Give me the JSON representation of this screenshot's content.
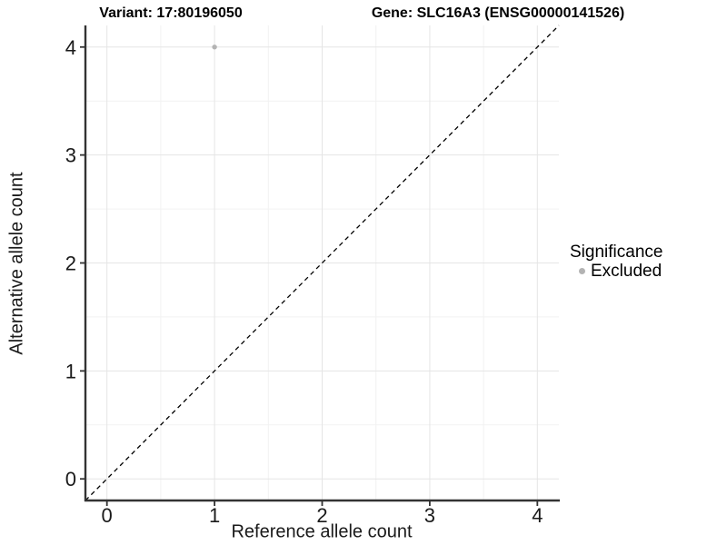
{
  "titles": {
    "variant": "Variant: 17:80196050",
    "gene": "Gene: SLC16A3 (ENSG00000141526)"
  },
  "chart_data": {
    "type": "scatter",
    "xlabel": "Reference allele count",
    "ylabel": "Alternative allele count",
    "xticks": [
      0,
      1,
      2,
      3,
      4
    ],
    "yticks": [
      0,
      1,
      2,
      3,
      4
    ],
    "minor_xticks": [
      0.5,
      1.5,
      2.5,
      3.5
    ],
    "minor_yticks": [
      0.5,
      1.5,
      2.5,
      3.5
    ],
    "xlim": [
      -0.2,
      4.2
    ],
    "ylim": [
      -0.2,
      4.2
    ],
    "grid": "on",
    "series": [
      {
        "name": "Excluded",
        "color": "#b3b3b3",
        "point_radius": 2.7,
        "points": [
          {
            "x": 1,
            "y": 4
          }
        ]
      }
    ],
    "identity_line": {
      "slope": 1,
      "intercept": 0,
      "style": "dashed",
      "color": "#000000"
    },
    "legend": {
      "title": "Significance",
      "position": "right",
      "entries": [
        {
          "label": "Excluded",
          "color": "#b3b3b3"
        }
      ]
    }
  },
  "colors": {
    "background": "#ffffff",
    "grid_major": "#e5e5e5",
    "grid_minor": "#f2f2f2",
    "axis_line": "#333333",
    "tick_mark": "#333333",
    "tick_label": "#1a1a1a"
  }
}
